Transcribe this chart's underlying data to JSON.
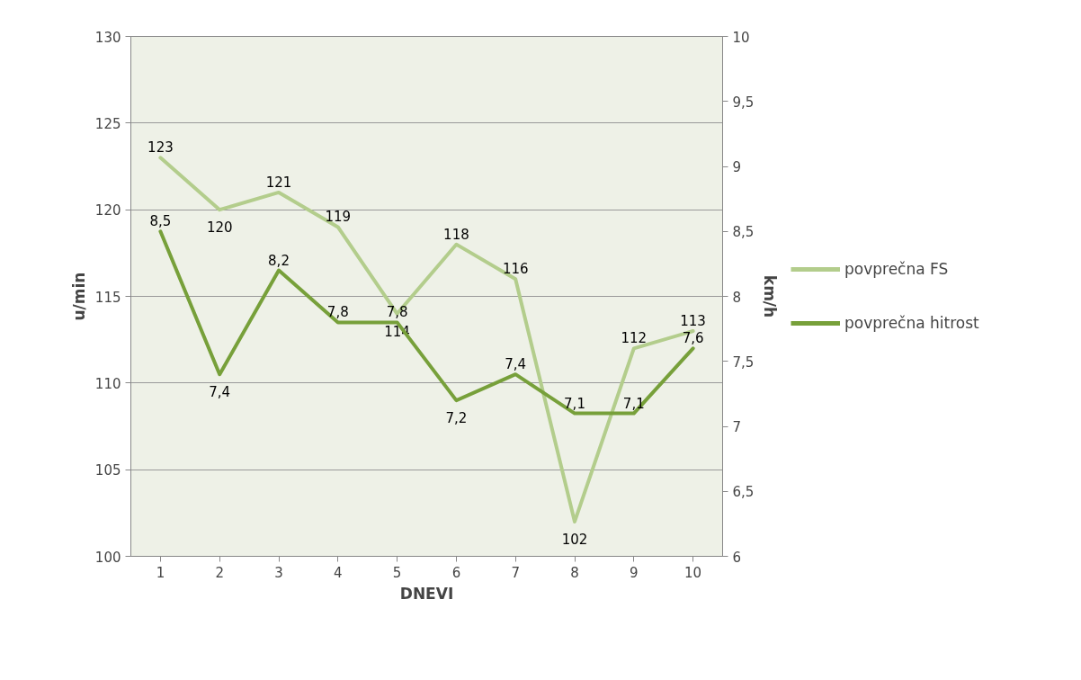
{
  "chart_data": {
    "type": "line",
    "xlabel": "DNEVI",
    "ylabel": "u/min",
    "y2label": "km/h",
    "categories": [
      "1",
      "2",
      "3",
      "4",
      "5",
      "6",
      "7",
      "8",
      "9",
      "10"
    ],
    "series": [
      {
        "name": "povprečna FS",
        "color": "#b3cd8c",
        "values": [
          123,
          120,
          121,
          119,
          114,
          118,
          116,
          102,
          112,
          113
        ],
        "value_labels": [
          "123",
          "120",
          "121",
          "119",
          "114",
          "118",
          "116",
          "102",
          "112",
          "113"
        ]
      },
      {
        "name": "povprečna hitrost",
        "color": "#77a03a",
        "axis": "y2",
        "values": [
          8.5,
          7.4,
          8.2,
          7.8,
          7.8,
          7.2,
          7.4,
          7.1,
          7.1,
          7.6
        ],
        "value_labels": [
          "8,5",
          "7,4",
          "8,2",
          "7,8",
          "7,8",
          "7,2",
          "7,4",
          "7,1",
          "7,1",
          "7,6"
        ]
      }
    ],
    "ylim": [
      100,
      130
    ],
    "yticks": [
      100,
      105,
      110,
      115,
      120,
      125,
      130
    ],
    "y2lim": [
      6,
      10
    ],
    "y2ticks": [
      6,
      {
        "value": 6.5,
        "label": "6,5"
      },
      7,
      {
        "value": 7.5,
        "label": "7,5"
      },
      8,
      {
        "value": 8.5,
        "label": "8,5"
      },
      9,
      {
        "value": 9.5,
        "label": "9,5"
      },
      10
    ],
    "grid": "y",
    "legend": "right",
    "marker": "none",
    "line_style": "solid"
  }
}
